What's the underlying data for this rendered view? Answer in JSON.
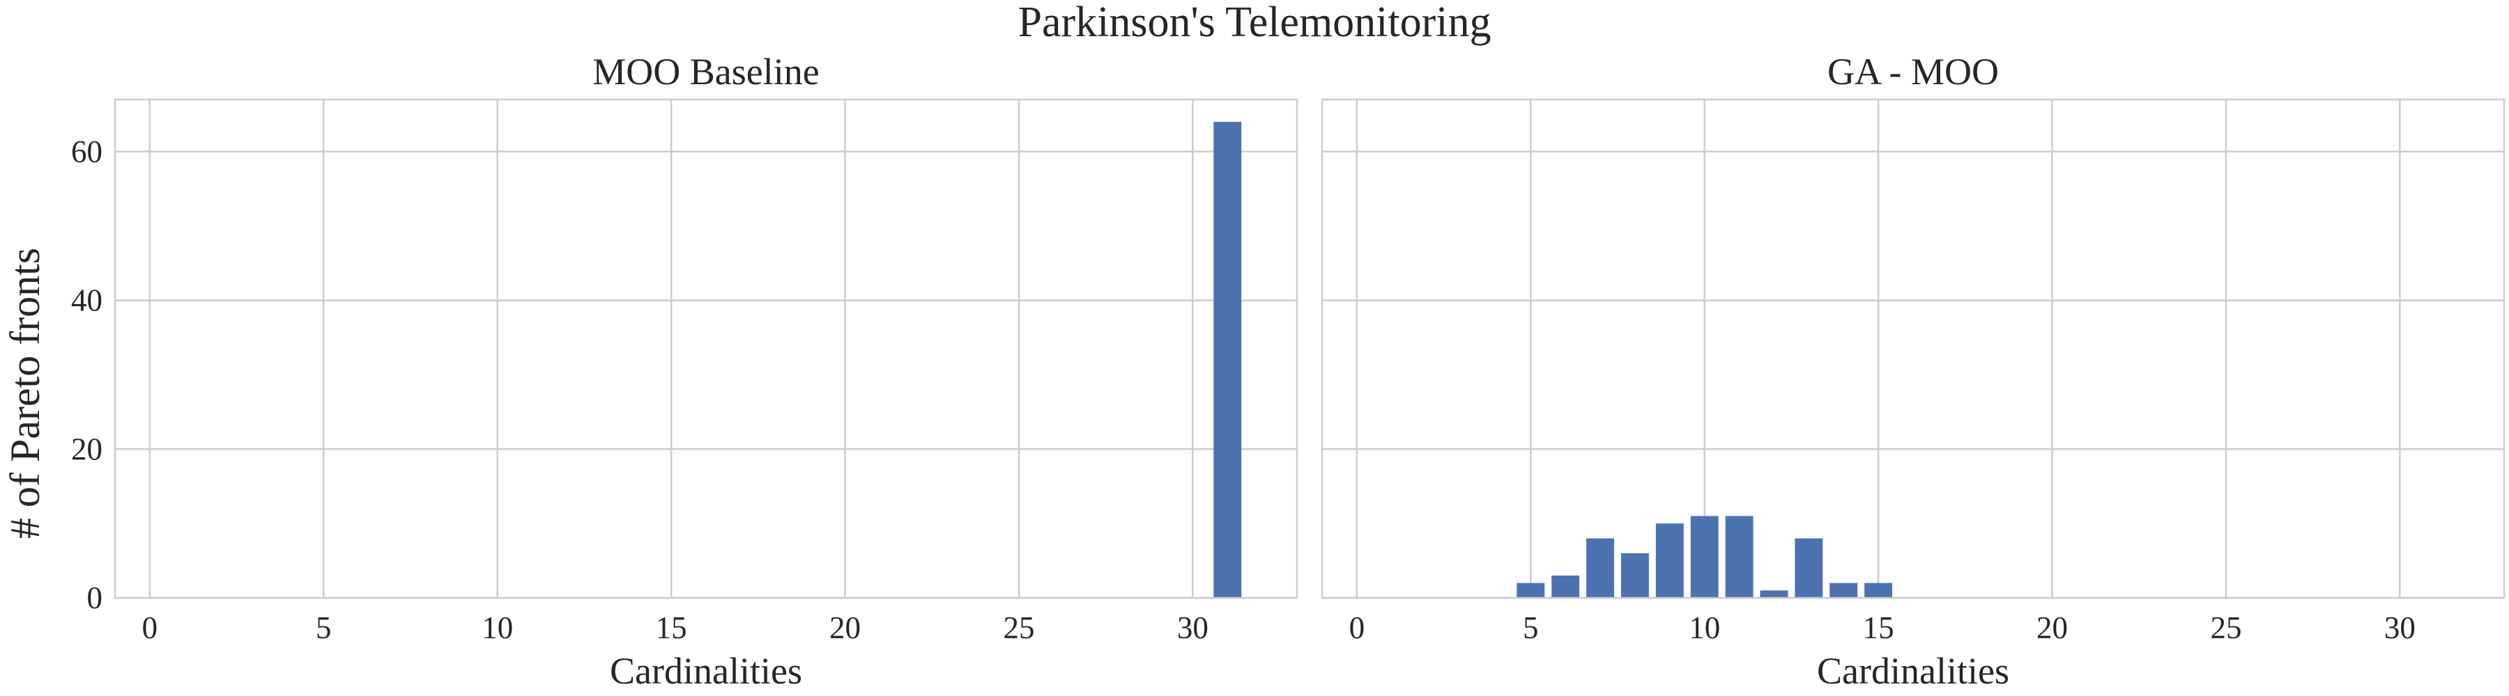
{
  "figure": {
    "suptitle": "Parkinson's Telemonitoring",
    "ylabel": "# of Pareto fronts"
  },
  "chart_data": [
    {
      "type": "bar",
      "title": "MOO Baseline",
      "xlabel": "Cardinalities",
      "ylabel": "# of Pareto fronts",
      "xlim": [
        -1,
        33
      ],
      "ylim": [
        0,
        67
      ],
      "xticks": [
        0,
        5,
        10,
        15,
        20,
        25,
        30
      ],
      "yticks": [
        0,
        20,
        40,
        60
      ],
      "grid": true,
      "color": "#4c72b0",
      "x": [
        31
      ],
      "values": [
        64
      ]
    },
    {
      "type": "bar",
      "title": "GA - MOO",
      "xlabel": "Cardinalities",
      "xlim": [
        -1,
        33
      ],
      "ylim": [
        0,
        67
      ],
      "xticks": [
        0,
        5,
        10,
        15,
        20,
        25,
        30
      ],
      "yticks": [
        0,
        20,
        40,
        60
      ],
      "grid": true,
      "color": "#4c72b0",
      "x": [
        5,
        6,
        7,
        8,
        9,
        10,
        11,
        12,
        13,
        14,
        15
      ],
      "values": [
        2,
        3,
        8,
        6,
        10,
        11,
        11,
        1,
        8,
        2,
        2
      ]
    }
  ]
}
